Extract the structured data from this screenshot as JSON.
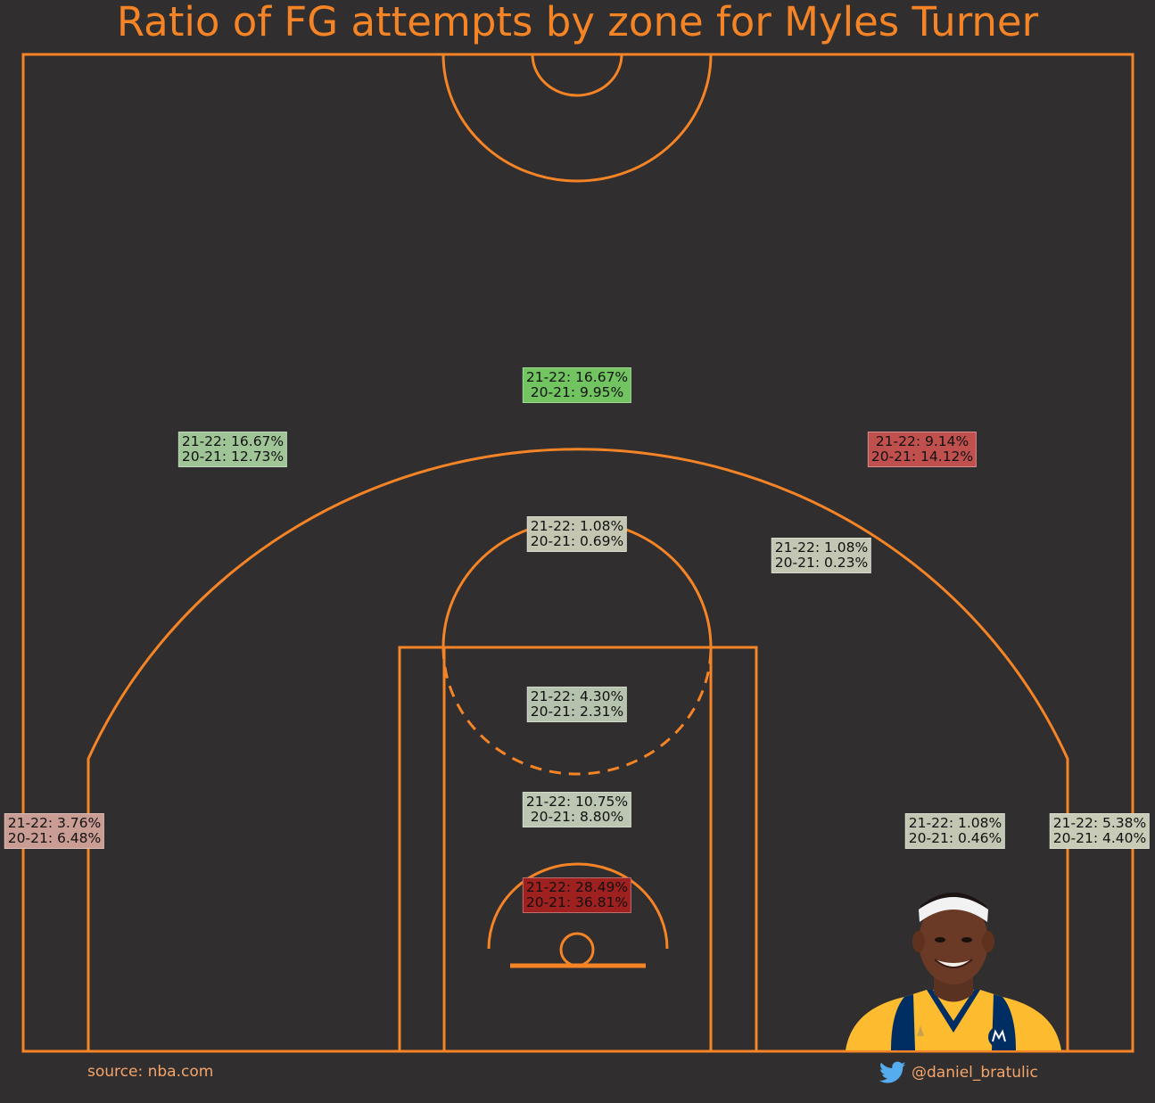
{
  "title": "Ratio of FG attempts by zone for Myles Turner",
  "source": "source: nba.com",
  "twitter_handle": "@daniel_bratulic",
  "icons": {
    "bird": "twitter-bird-icon",
    "player": "player-headshot"
  },
  "colors": {
    "court_lines": "#f58426",
    "background": "#302e2f",
    "footer_text": "#f5a46a",
    "twitter": "#55acee"
  },
  "chart_data": {
    "type": "heatmap",
    "title": "Ratio of FG attempts by zone for Myles Turner",
    "series": [
      {
        "name": "21-22"
      },
      {
        "name": "20-21"
      }
    ],
    "zones": [
      {
        "id": "above-break-three-center",
        "label_2122": "21-22: 16.67%",
        "label_2021": "20-21: 9.95%",
        "value_2122": 16.67,
        "value_2021": 9.95,
        "color": "#72c461"
      },
      {
        "id": "above-break-three-left",
        "label_2122": "21-22: 16.67%",
        "label_2021": "20-21: 12.73%",
        "value_2122": 16.67,
        "value_2021": 12.73,
        "color": "#9fc496"
      },
      {
        "id": "above-break-three-right",
        "label_2122": "21-22: 9.14%",
        "label_2021": "20-21: 14.12%",
        "value_2122": 9.14,
        "value_2021": 14.12,
        "color": "#c0504d"
      },
      {
        "id": "mid-range-center",
        "label_2122": "21-22: 1.08%",
        "label_2021": "20-21: 0.69%",
        "value_2122": 1.08,
        "value_2021": 0.69,
        "color": "#c4c6b2"
      },
      {
        "id": "mid-range-right",
        "label_2122": "21-22: 1.08%",
        "label_2021": "20-21: 0.23%",
        "value_2122": 1.08,
        "value_2021": 0.23,
        "color": "#c2c6b3"
      },
      {
        "id": "paint-non-ra-upper",
        "label_2122": "21-22: 4.30%",
        "label_2021": "20-21: 2.31%",
        "value_2122": 4.3,
        "value_2021": 2.31,
        "color": "#b5c2ad"
      },
      {
        "id": "paint-non-ra-lower",
        "label_2122": "21-22: 10.75%",
        "label_2021": "20-21: 8.80%",
        "value_2122": 10.75,
        "value_2021": 8.8,
        "color": "#bcc7b3"
      },
      {
        "id": "restricted-area",
        "label_2122": "21-22: 28.49%",
        "label_2021": "20-21: 36.81%",
        "value_2122": 28.49,
        "value_2021": 36.81,
        "color": "#9e2120"
      },
      {
        "id": "left-corner-three",
        "label_2122": "21-22: 3.76%",
        "label_2021": "20-21: 6.48%",
        "value_2122": 3.76,
        "value_2021": 6.48,
        "color": "#c99c94"
      },
      {
        "id": "mid-range-right-baseline",
        "label_2122": "21-22: 1.08%",
        "label_2021": "20-21: 0.46%",
        "value_2122": 1.08,
        "value_2021": 0.46,
        "color": "#c2c6b3"
      },
      {
        "id": "right-corner-three",
        "label_2122": "21-22: 5.38%",
        "label_2021": "20-21: 4.40%",
        "value_2122": 5.38,
        "value_2021": 4.4,
        "color": "#c8cbb6"
      }
    ]
  }
}
